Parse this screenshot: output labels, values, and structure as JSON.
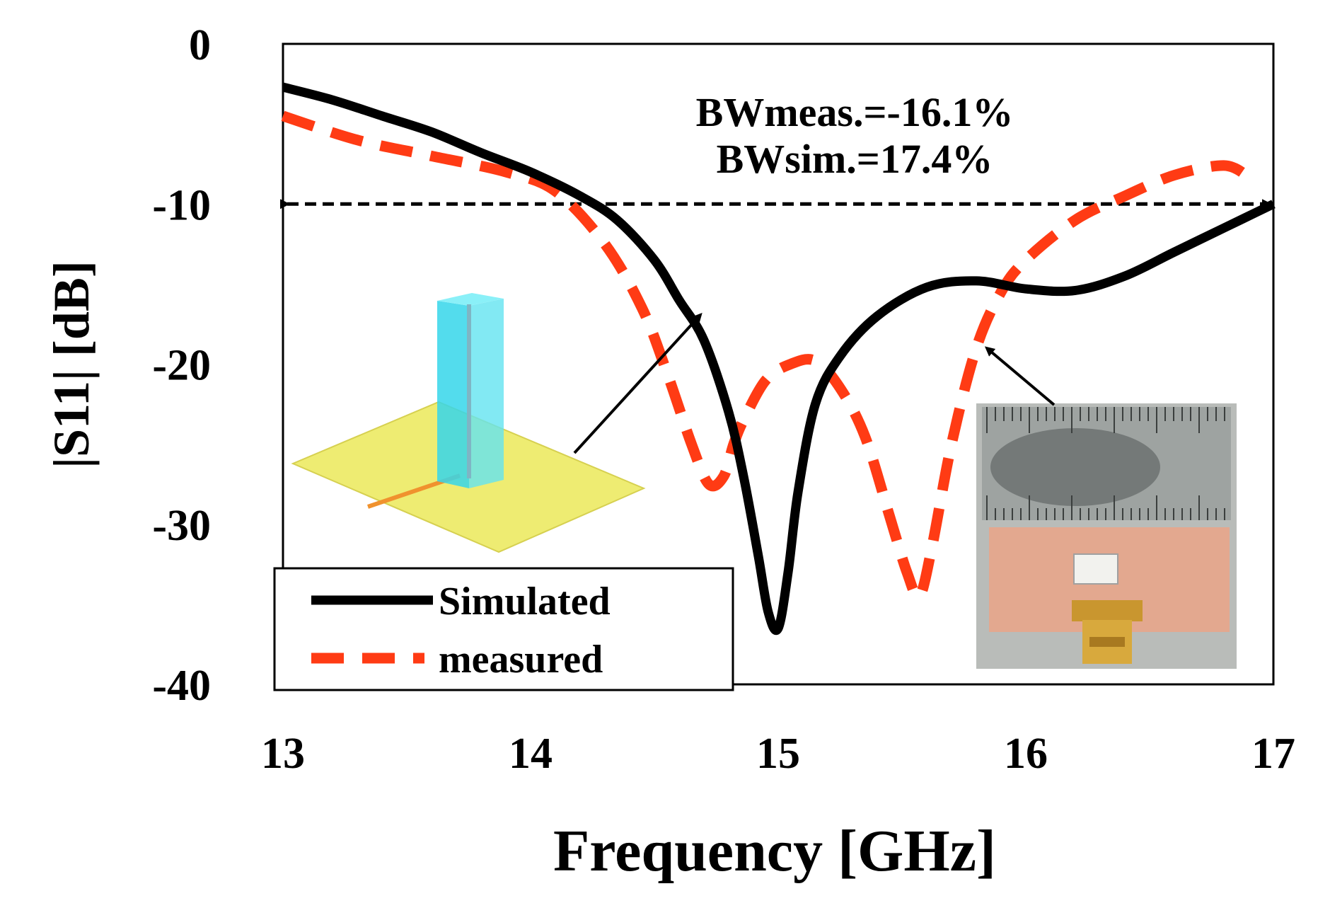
{
  "chart_data": {
    "type": "line",
    "xlabel": "Frequency [GHz]",
    "ylabel": "|S11| [dB]",
    "xlim": [
      13,
      17
    ],
    "ylim": [
      -40,
      0
    ],
    "xticks": [
      13,
      14,
      15,
      16,
      17
    ],
    "yticks": [
      0,
      -10,
      -20,
      -30,
      -40
    ],
    "grid": false,
    "legend_position": "bottom-left",
    "annotations": {
      "bw_meas": "BWmeas.=-16.1%",
      "bw_sim": "BWsim.=17.4%",
      "reference_line_db": -10
    },
    "series": [
      {
        "name": "Simulated",
        "style": "solid",
        "color": "#000000",
        "x": [
          13.0,
          13.2,
          13.4,
          13.6,
          13.8,
          14.0,
          14.2,
          14.35,
          14.5,
          14.6,
          14.7,
          14.8,
          14.86,
          14.92,
          14.96,
          15.0,
          15.04,
          15.08,
          15.15,
          15.25,
          15.4,
          15.6,
          15.8,
          16.0,
          16.2,
          16.4,
          16.6,
          16.8,
          17.0
        ],
        "values": [
          -2.7,
          -3.5,
          -4.5,
          -5.5,
          -6.8,
          -8.0,
          -9.5,
          -11.0,
          -13.5,
          -16.0,
          -18.5,
          -23.0,
          -27.0,
          -32.0,
          -35.5,
          -36.5,
          -33.0,
          -28.0,
          -22.5,
          -19.5,
          -17.0,
          -15.2,
          -14.8,
          -15.3,
          -15.4,
          -14.5,
          -13.0,
          -11.5,
          -10.0
        ]
      },
      {
        "name": "measured",
        "style": "dashed",
        "color": "#ff3b14",
        "x": [
          13.0,
          13.3,
          13.6,
          13.9,
          14.1,
          14.3,
          14.45,
          14.55,
          14.65,
          14.72,
          14.78,
          14.82,
          14.86,
          14.95,
          15.05,
          15.15,
          15.25,
          15.35,
          15.45,
          15.52,
          15.57,
          15.62,
          15.7,
          15.8,
          15.9,
          16.0,
          16.2,
          16.4,
          16.6,
          16.8,
          16.9
        ],
        "values": [
          -4.5,
          -6.0,
          -7.0,
          -8.0,
          -9.2,
          -12.5,
          -16.5,
          -20.5,
          -25.0,
          -27.5,
          -27.0,
          -25.0,
          -23.5,
          -21.0,
          -20.0,
          -19.8,
          -21.5,
          -24.5,
          -29.5,
          -33.0,
          -34.5,
          -31.5,
          -25.0,
          -19.0,
          -15.5,
          -13.5,
          -11.0,
          -9.5,
          -8.2,
          -7.6,
          -8.3
        ]
      }
    ]
  }
}
